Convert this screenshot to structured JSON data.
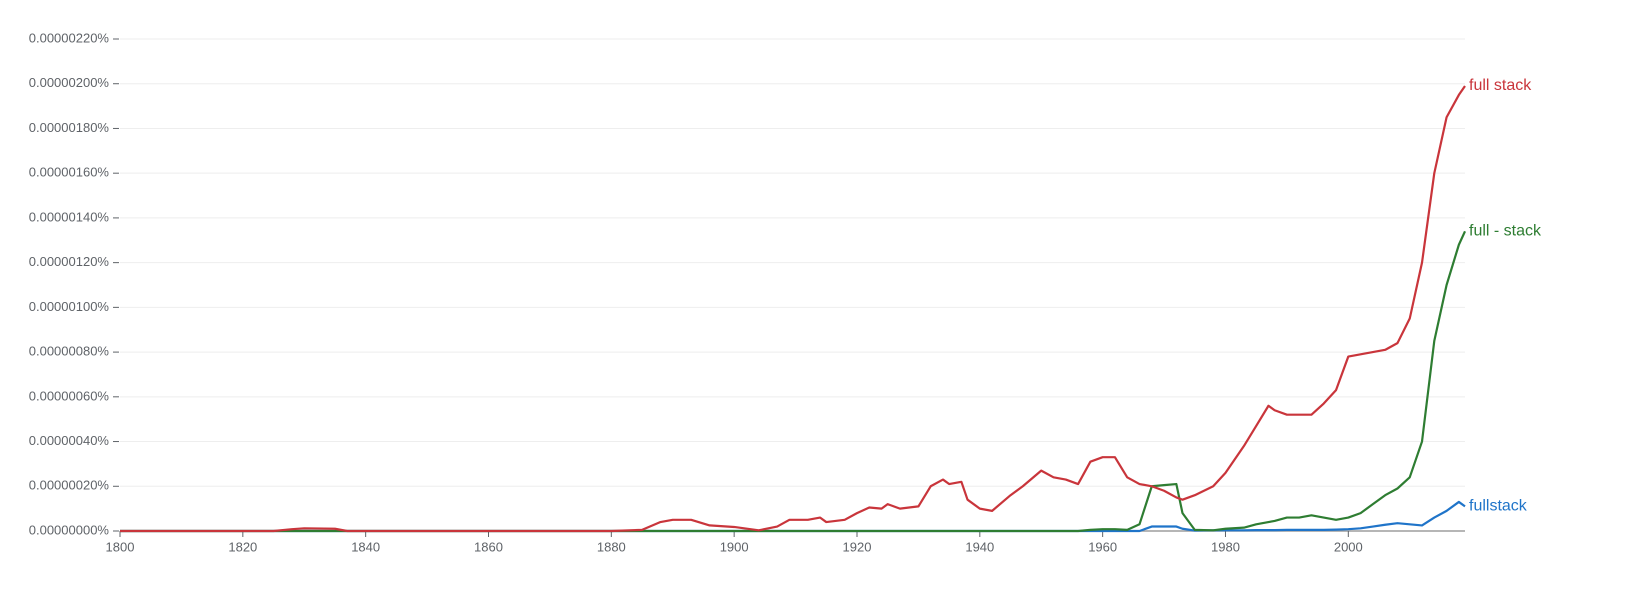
{
  "chart_data": {
    "type": "line",
    "x": [
      1800,
      1825,
      1828,
      1830,
      1835,
      1837,
      1880,
      1885,
      1888,
      1890,
      1893,
      1896,
      1900,
      1904,
      1907,
      1909,
      1912,
      1914,
      1915,
      1918,
      1920,
      1922,
      1924,
      1925,
      1927,
      1930,
      1932,
      1934,
      1935,
      1937,
      1938,
      1940,
      1942,
      1945,
      1947,
      1950,
      1952,
      1954,
      1956,
      1958,
      1960,
      1962,
      1964,
      1966,
      1968,
      1970,
      1972,
      1973,
      1975,
      1978,
      1980,
      1983,
      1985,
      1987,
      1988,
      1990,
      1992,
      1994,
      1996,
      1998,
      2000,
      2002,
      2004,
      2006,
      2008,
      2010,
      2012,
      2014,
      2016,
      2018,
      2019
    ],
    "series": [
      {
        "name": "full stack",
        "color": "#c9353b",
        "values": [
          0,
          0,
          8e-09,
          1.2e-08,
          1e-08,
          0,
          0,
          5e-09,
          4e-08,
          5e-08,
          5e-08,
          2.5e-08,
          1.8e-08,
          3e-09,
          2e-08,
          5e-08,
          5e-08,
          6e-08,
          4e-08,
          5e-08,
          8e-08,
          1.05e-07,
          1e-07,
          1.2e-07,
          1e-07,
          1.1e-07,
          2e-07,
          2.3e-07,
          2.1e-07,
          2.2e-07,
          1.4e-07,
          1e-07,
          9e-08,
          1.6e-07,
          2e-07,
          2.7e-07,
          2.4e-07,
          2.3e-07,
          2.1e-07,
          3.1e-07,
          3.3e-07,
          3.3e-07,
          2.4e-07,
          2.1e-07,
          2e-07,
          1.8e-07,
          1.5e-07,
          1.4e-07,
          1.6e-07,
          2e-07,
          2.6e-07,
          3.8e-07,
          4.7e-07,
          5.6e-07,
          5.4e-07,
          5.2e-07,
          5.2e-07,
          5.2e-07,
          5.7e-07,
          6.3e-07,
          7.8e-07,
          7.9e-07,
          8e-07,
          8.1e-07,
          8.4e-07,
          9.5e-07,
          1.2e-06,
          1.6e-06,
          1.85e-06,
          1.95e-06,
          1.99e-06
        ]
      },
      {
        "name": "full - stack",
        "color": "#2e7d32",
        "values": [
          0,
          0,
          0,
          0,
          0,
          0,
          0,
          0,
          0,
          0,
          0,
          0,
          0,
          0,
          0,
          0,
          0,
          0,
          0,
          0,
          0,
          0,
          0,
          0,
          0,
          0,
          0,
          0,
          0,
          0,
          0,
          0,
          0,
          0,
          0,
          0,
          0,
          0,
          0,
          5e-09,
          8e-09,
          8e-09,
          5e-09,
          3e-08,
          2e-07,
          2.05e-07,
          2.1e-07,
          8e-08,
          5e-09,
          3e-09,
          1e-08,
          1.5e-08,
          3e-08,
          4e-08,
          4.5e-08,
          6e-08,
          6e-08,
          7e-08,
          6e-08,
          5e-08,
          6e-08,
          8e-08,
          1.2e-07,
          1.6e-07,
          1.9e-07,
          2.4e-07,
          4e-07,
          8.5e-07,
          1.1e-06,
          1.28e-06,
          1.34e-06
        ]
      },
      {
        "name": "fullstack",
        "color": "#1f74c9",
        "values": [
          0,
          0,
          0,
          0,
          0,
          0,
          0,
          0,
          0,
          0,
          0,
          0,
          0,
          0,
          0,
          0,
          0,
          0,
          0,
          0,
          0,
          0,
          0,
          0,
          0,
          0,
          0,
          0,
          0,
          0,
          0,
          0,
          0,
          0,
          0,
          0,
          0,
          0,
          0,
          0,
          0,
          0,
          0,
          0,
          2e-08,
          2e-08,
          2e-08,
          1e-08,
          2e-09,
          3e-09,
          3e-09,
          3e-09,
          4e-09,
          4e-09,
          4e-09,
          5e-09,
          5e-09,
          5e-09,
          5e-09,
          6e-09,
          8e-09,
          1.2e-08,
          2e-08,
          2.8e-08,
          3.5e-08,
          3e-08,
          2.5e-08,
          6e-08,
          9e-08,
          1.3e-07,
          1.1e-07
        ]
      }
    ],
    "xlim": [
      1800,
      2019
    ],
    "xticks": [
      1800,
      1820,
      1840,
      1860,
      1880,
      1900,
      1920,
      1940,
      1960,
      1980,
      2000
    ],
    "ylim": [
      0,
      2.2e-06
    ],
    "yticks": [
      {
        "value": 0,
        "label": "0.00000000%"
      },
      {
        "value": 2e-07,
        "label": "0.00000020%"
      },
      {
        "value": 4e-07,
        "label": "0.00000040%"
      },
      {
        "value": 6e-07,
        "label": "0.00000060%"
      },
      {
        "value": 8e-07,
        "label": "0.00000080%"
      },
      {
        "value": 1e-06,
        "label": "0.00000100%"
      },
      {
        "value": 1.2e-06,
        "label": "0.00000120%"
      },
      {
        "value": 1.4e-06,
        "label": "0.00000140%"
      },
      {
        "value": 1.6e-06,
        "label": "0.00000160%"
      },
      {
        "value": 1.8e-06,
        "label": "0.00000180%"
      },
      {
        "value": 2e-06,
        "label": "0.00000200%"
      },
      {
        "value": 2.2e-06,
        "label": "0.00000220%"
      }
    ],
    "grid": true
  }
}
